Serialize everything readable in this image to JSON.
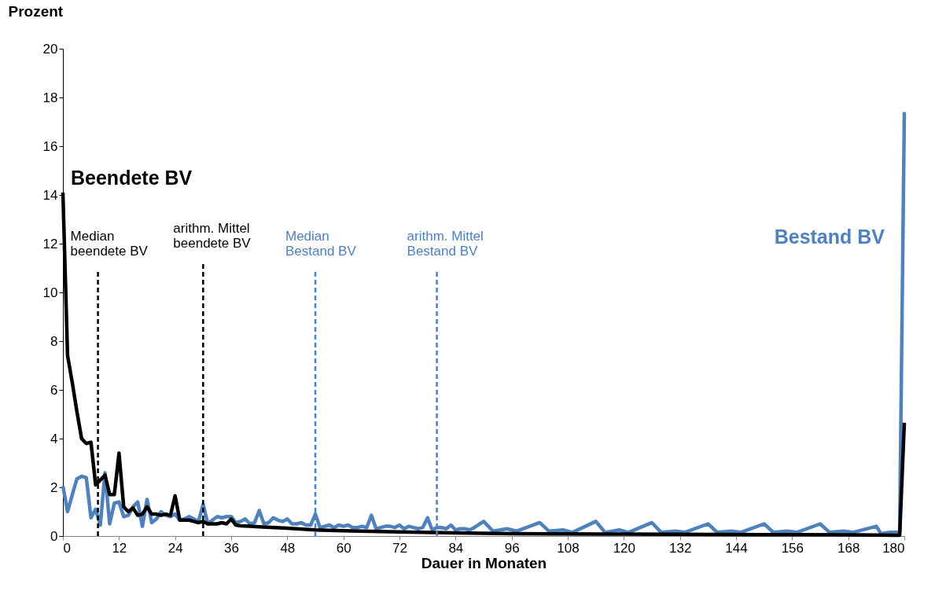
{
  "chart_data": {
    "type": "line",
    "ylabel": "Prozent",
    "xlabel": "Dauer in Monaten",
    "xlim": [
      0,
      180
    ],
    "xticks": [
      0,
      12,
      24,
      36,
      48,
      60,
      72,
      84,
      96,
      108,
      120,
      132,
      144,
      156,
      168,
      180
    ],
    "ylim": [
      0,
      20
    ],
    "yticks": [
      0,
      2,
      4,
      6,
      8,
      10,
      12,
      14,
      16,
      18,
      20
    ],
    "grid": false,
    "marker": "none",
    "line_style": "solid",
    "series": [
      {
        "name": "Bestand BV",
        "color": "#4f81bd",
        "x": [
          0,
          1,
          2,
          3,
          4,
          5,
          6,
          7,
          8,
          9,
          10,
          11,
          12,
          13,
          14,
          15,
          16,
          17,
          18,
          19,
          20,
          21,
          22,
          23,
          24,
          25,
          26,
          27,
          28,
          29,
          30,
          31,
          32,
          33,
          34,
          35,
          36,
          37,
          38,
          39,
          40,
          41,
          42,
          43,
          44,
          45,
          46,
          47,
          48,
          49,
          50,
          51,
          52,
          53,
          54,
          55,
          56,
          57,
          58,
          59,
          60,
          61,
          62,
          63,
          64,
          65,
          66,
          67,
          68,
          69,
          70,
          71,
          72,
          73,
          74,
          75,
          76,
          77,
          78,
          79,
          80,
          81,
          82,
          83,
          84,
          85,
          86,
          87,
          88,
          90,
          92,
          95,
          97,
          102,
          104,
          107,
          109,
          114,
          116,
          119,
          121,
          126,
          128,
          131,
          133,
          138,
          140,
          143,
          145,
          150,
          152,
          155,
          157,
          162,
          164,
          167,
          169,
          174,
          175,
          177,
          179,
          180
        ],
        "values": [
          2.05,
          1.0,
          1.7,
          2.35,
          2.45,
          2.4,
          0.75,
          1.1,
          0.45,
          2.6,
          0.5,
          1.35,
          1.4,
          0.8,
          0.85,
          1.2,
          1.4,
          0.4,
          1.5,
          0.55,
          0.7,
          1.0,
          0.85,
          0.8,
          0.9,
          0.65,
          0.7,
          0.8,
          0.7,
          0.6,
          1.3,
          0.5,
          0.65,
          0.8,
          0.75,
          0.8,
          0.8,
          0.55,
          0.6,
          0.7,
          0.5,
          0.55,
          1.05,
          0.5,
          0.55,
          0.75,
          0.65,
          0.6,
          0.7,
          0.5,
          0.5,
          0.55,
          0.45,
          0.45,
          0.9,
          0.35,
          0.4,
          0.45,
          0.35,
          0.45,
          0.4,
          0.45,
          0.35,
          0.35,
          0.4,
          0.35,
          0.85,
          0.3,
          0.35,
          0.4,
          0.4,
          0.35,
          0.45,
          0.3,
          0.4,
          0.35,
          0.3,
          0.35,
          0.75,
          0.25,
          0.35,
          0.35,
          0.3,
          0.45,
          0.25,
          0.3,
          0.3,
          0.25,
          0.35,
          0.6,
          0.2,
          0.3,
          0.2,
          0.55,
          0.2,
          0.25,
          0.15,
          0.6,
          0.15,
          0.25,
          0.15,
          0.55,
          0.15,
          0.2,
          0.15,
          0.5,
          0.15,
          0.2,
          0.15,
          0.5,
          0.15,
          0.2,
          0.15,
          0.5,
          0.15,
          0.2,
          0.15,
          0.4,
          0.1,
          0.15,
          0.15,
          17.4
        ]
      },
      {
        "name": "Beendete BV",
        "color": "#000000",
        "x": [
          0,
          1,
          2,
          3,
          4,
          5,
          6,
          7,
          8,
          9,
          10,
          11,
          12,
          13,
          14,
          15,
          16,
          17,
          18,
          19,
          20,
          21,
          22,
          23,
          24,
          25,
          26,
          27,
          28,
          29,
          30,
          31,
          32,
          33,
          34,
          35,
          36,
          37,
          38,
          40,
          42,
          48,
          54,
          60,
          72,
          84,
          96,
          120,
          150,
          170,
          178,
          179,
          180
        ],
        "values": [
          14.1,
          7.4,
          6.3,
          5.1,
          4.0,
          3.8,
          3.85,
          2.1,
          2.3,
          2.5,
          1.7,
          1.7,
          3.4,
          1.2,
          1.0,
          1.15,
          0.85,
          0.9,
          1.2,
          0.9,
          0.9,
          0.85,
          0.9,
          0.85,
          1.65,
          0.65,
          0.65,
          0.65,
          0.6,
          0.55,
          0.6,
          0.5,
          0.5,
          0.5,
          0.55,
          0.5,
          0.7,
          0.45,
          0.42,
          0.4,
          0.38,
          0.32,
          0.25,
          0.22,
          0.17,
          0.13,
          0.1,
          0.08,
          0.06,
          0.05,
          0.03,
          0.03,
          4.65
        ]
      }
    ],
    "ref_lines": [
      {
        "axis": "x",
        "value": 7.5,
        "label": "Median\nbeendete BV",
        "color": "#000000",
        "line_style": "dashed"
      },
      {
        "axis": "x",
        "value": 30,
        "label": "arithm. Mittel\nbeendete BV",
        "color": "#000000",
        "line_style": "dashed"
      },
      {
        "axis": "x",
        "value": 54,
        "label": "Median\nBestand BV",
        "color": "#4f81bd",
        "line_style": "dashed"
      },
      {
        "axis": "x",
        "value": 80,
        "label": "arithm. Mittel\nBestand BV",
        "color": "#4f81bd",
        "line_style": "dashed"
      }
    ]
  }
}
